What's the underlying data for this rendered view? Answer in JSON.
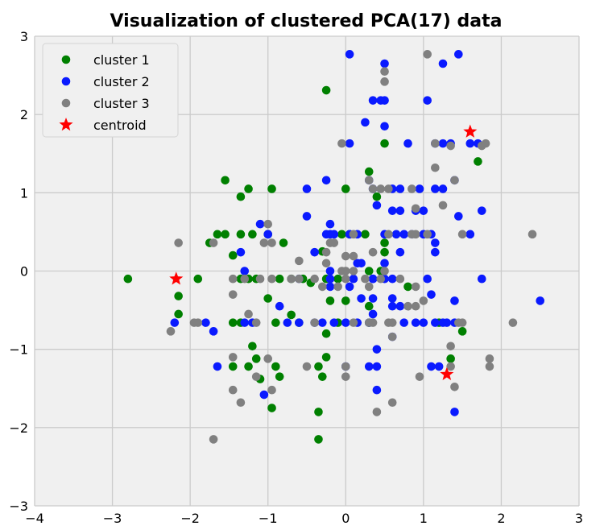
{
  "chart_data": {
    "type": "scatter",
    "title": "Visualization of clustered PCA(17) data",
    "xlabel": "",
    "ylabel": "",
    "xlim": [
      -4,
      3
    ],
    "ylim": [
      -3,
      3
    ],
    "xticks": [
      -4,
      -3,
      -2,
      -1,
      0,
      1,
      2,
      3
    ],
    "yticks": [
      -3,
      -2,
      -1,
      0,
      1,
      2,
      3
    ],
    "xtick_labels": [
      "−4",
      "−3",
      "−2",
      "−1",
      "0",
      "1",
      "2",
      "3"
    ],
    "ytick_labels": [
      "−3",
      "−2",
      "−1",
      "0",
      "1",
      "2",
      "3"
    ],
    "grid": true,
    "legend_position": "top-left",
    "background_color": "#f0f0f0",
    "grid_color": "#cbcbcb",
    "series": [
      {
        "name": "cluster 1",
        "color": "#008000",
        "marker": "circle",
        "points": [
          [
            -2.8,
            -0.1
          ],
          [
            -2.15,
            -0.32
          ],
          [
            -2.15,
            -0.55
          ],
          [
            -1.9,
            -0.1
          ],
          [
            -1.75,
            0.36
          ],
          [
            -1.65,
            0.47
          ],
          [
            -1.55,
            1.16
          ],
          [
            -1.55,
            0.47
          ],
          [
            -1.45,
            0.2
          ],
          [
            -1.35,
            0.95
          ],
          [
            -1.25,
            1.05
          ],
          [
            -1.35,
            0.47
          ],
          [
            -1.35,
            -0.1
          ],
          [
            -1.25,
            -0.1
          ],
          [
            -1.15,
            -0.1
          ],
          [
            -1.2,
            0.47
          ],
          [
            -1.0,
            0.47
          ],
          [
            -0.95,
            1.05
          ],
          [
            -0.8,
            0.36
          ],
          [
            -0.85,
            -0.1
          ],
          [
            -0.7,
            -0.1
          ],
          [
            -0.55,
            -0.1
          ],
          [
            -0.45,
            -0.15
          ],
          [
            -0.25,
            -0.1
          ],
          [
            -0.1,
            -0.1
          ],
          [
            0.0,
            1.05
          ],
          [
            -0.25,
            2.31
          ],
          [
            0.3,
            1.27
          ],
          [
            0.4,
            0.95
          ],
          [
            0.5,
            1.63
          ],
          [
            0.05,
            0.47
          ],
          [
            0.25,
            0.47
          ],
          [
            0.3,
            0.0
          ],
          [
            0.45,
            0.0
          ],
          [
            0.5,
            0.36
          ],
          [
            0.5,
            0.24
          ],
          [
            0.8,
            -0.2
          ],
          [
            1.7,
            1.4
          ],
          [
            1.35,
            -1.12
          ],
          [
            1.5,
            -0.77
          ],
          [
            -0.2,
            -0.38
          ],
          [
            -0.1,
            -0.66
          ],
          [
            0.0,
            -0.38
          ],
          [
            -0.7,
            -0.56
          ],
          [
            -1.2,
            -0.96
          ],
          [
            -1.15,
            -1.12
          ],
          [
            -1.25,
            -1.22
          ],
          [
            -1.45,
            -1.22
          ],
          [
            -1.1,
            -1.38
          ],
          [
            -0.9,
            -1.22
          ],
          [
            -0.85,
            -1.35
          ],
          [
            -0.95,
            -1.75
          ],
          [
            -0.25,
            -1.1
          ],
          [
            -0.35,
            -1.8
          ],
          [
            -0.35,
            -2.15
          ],
          [
            -0.3,
            -1.35
          ],
          [
            -0.35,
            -1.22
          ],
          [
            0.3,
            -0.45
          ],
          [
            0.3,
            -0.66
          ],
          [
            -0.6,
            -0.66
          ],
          [
            -0.9,
            -0.66
          ],
          [
            -1.35,
            -0.66
          ],
          [
            -1.45,
            -0.66
          ],
          [
            -1.0,
            -0.35
          ],
          [
            -0.3,
            0.25
          ],
          [
            -0.05,
            0.47
          ],
          [
            1.2,
            -0.66
          ],
          [
            -0.25,
            -0.8
          ]
        ]
      },
      {
        "name": "cluster 2",
        "color": "#0a1aff",
        "marker": "circle",
        "points": [
          [
            0.05,
            2.77
          ],
          [
            0.5,
            2.65
          ],
          [
            1.25,
            2.65
          ],
          [
            1.45,
            2.77
          ],
          [
            0.35,
            2.18
          ],
          [
            0.45,
            2.18
          ],
          [
            0.5,
            2.18
          ],
          [
            1.05,
            2.18
          ],
          [
            0.25,
            1.9
          ],
          [
            0.5,
            1.85
          ],
          [
            0.05,
            1.63
          ],
          [
            0.8,
            1.63
          ],
          [
            1.15,
            1.63
          ],
          [
            1.25,
            1.63
          ],
          [
            1.35,
            1.63
          ],
          [
            1.6,
            1.63
          ],
          [
            1.7,
            1.63
          ],
          [
            -0.25,
            1.16
          ],
          [
            -0.5,
            1.05
          ],
          [
            0.35,
            1.05
          ],
          [
            0.6,
            1.05
          ],
          [
            0.7,
            1.05
          ],
          [
            0.95,
            1.05
          ],
          [
            0.3,
            1.16
          ],
          [
            1.15,
            1.05
          ],
          [
            1.25,
            1.05
          ],
          [
            1.4,
            1.16
          ],
          [
            -0.5,
            0.7
          ],
          [
            0.4,
            0.84
          ],
          [
            0.6,
            0.77
          ],
          [
            0.7,
            0.77
          ],
          [
            0.9,
            0.77
          ],
          [
            1.0,
            0.77
          ],
          [
            1.45,
            0.7
          ],
          [
            1.75,
            0.77
          ],
          [
            -1.1,
            0.6
          ],
          [
            -1.0,
            0.47
          ],
          [
            -0.25,
            0.47
          ],
          [
            -0.2,
            0.47
          ],
          [
            -0.2,
            0.6
          ],
          [
            -0.4,
            0.24
          ],
          [
            -0.15,
            0.47
          ],
          [
            0.05,
            0.47
          ],
          [
            0.15,
            0.47
          ],
          [
            0.5,
            0.47
          ],
          [
            0.65,
            0.47
          ],
          [
            0.75,
            0.47
          ],
          [
            0.85,
            0.47
          ],
          [
            1.0,
            0.47
          ],
          [
            1.1,
            0.47
          ],
          [
            1.6,
            0.47
          ],
          [
            -1.35,
            0.24
          ],
          [
            -1.3,
            0.0
          ],
          [
            0.5,
            0.1
          ],
          [
            0.7,
            0.24
          ],
          [
            1.15,
            0.24
          ],
          [
            1.15,
            0.36
          ],
          [
            0.2,
            0.1
          ],
          [
            -0.85,
            -0.45
          ],
          [
            -0.75,
            -0.66
          ],
          [
            -0.6,
            -0.66
          ],
          [
            -0.4,
            -0.66
          ],
          [
            -0.3,
            -0.66
          ],
          [
            -0.15,
            -0.66
          ],
          [
            0.0,
            -0.66
          ],
          [
            0.15,
            -0.66
          ],
          [
            0.3,
            -0.66
          ],
          [
            0.35,
            -0.55
          ],
          [
            0.6,
            -0.45
          ],
          [
            0.75,
            -0.66
          ],
          [
            0.9,
            -0.66
          ],
          [
            1.0,
            -0.66
          ],
          [
            1.15,
            -0.66
          ],
          [
            1.25,
            -0.66
          ],
          [
            1.3,
            -0.66
          ],
          [
            1.4,
            -0.66
          ],
          [
            -1.8,
            -0.66
          ],
          [
            -1.7,
            -0.77
          ],
          [
            -1.65,
            -1.22
          ],
          [
            -1.3,
            -0.66
          ],
          [
            -1.2,
            -0.66
          ],
          [
            -1.05,
            -1.58
          ],
          [
            -0.2,
            -0.2
          ],
          [
            0.05,
            -0.2
          ],
          [
            0.2,
            -0.35
          ],
          [
            0.35,
            -0.35
          ],
          [
            0.6,
            -0.35
          ],
          [
            0.7,
            -0.45
          ],
          [
            -0.2,
            -0.1
          ],
          [
            0.1,
            -0.1
          ],
          [
            0.35,
            -0.1
          ],
          [
            0.6,
            -0.1
          ],
          [
            1.05,
            -0.1
          ],
          [
            1.1,
            -0.3
          ],
          [
            1.75,
            -0.1
          ],
          [
            0.0,
            -1.22
          ],
          [
            0.3,
            -1.22
          ],
          [
            0.4,
            -1.22
          ],
          [
            0.4,
            -1.52
          ],
          [
            0.4,
            -1.0
          ],
          [
            0.6,
            -0.84
          ],
          [
            1.1,
            -1.22
          ],
          [
            1.2,
            -1.22
          ],
          [
            1.4,
            -1.8
          ],
          [
            1.4,
            -0.38
          ],
          [
            2.5,
            -0.38
          ],
          [
            0.35,
            -0.1
          ],
          [
            0.15,
            0.1
          ],
          [
            0.5,
            -0.1
          ],
          [
            -0.6,
            -0.1
          ],
          [
            -0.2,
            0.0
          ],
          [
            -2.2,
            -0.66
          ]
        ]
      },
      {
        "name": "cluster 3",
        "color": "#808080",
        "marker": "circle",
        "points": [
          [
            1.05,
            2.77
          ],
          [
            0.5,
            2.42
          ],
          [
            0.5,
            2.55
          ],
          [
            1.15,
            1.63
          ],
          [
            1.35,
            1.6
          ],
          [
            1.75,
            1.6
          ],
          [
            1.8,
            1.63
          ],
          [
            -0.05,
            1.63
          ],
          [
            1.15,
            1.32
          ],
          [
            1.4,
            1.16
          ],
          [
            1.25,
            0.84
          ],
          [
            1.5,
            0.47
          ],
          [
            2.4,
            0.47
          ],
          [
            0.3,
            1.16
          ],
          [
            0.35,
            1.05
          ],
          [
            0.45,
            1.05
          ],
          [
            0.55,
            1.05
          ],
          [
            0.85,
            1.05
          ],
          [
            0.9,
            0.8
          ],
          [
            -2.15,
            0.36
          ],
          [
            -1.7,
            0.36
          ],
          [
            -1.0,
            0.6
          ],
          [
            -1.05,
            0.36
          ],
          [
            -0.95,
            0.36
          ],
          [
            -0.2,
            0.36
          ],
          [
            -0.15,
            0.36
          ],
          [
            -0.25,
            0.1
          ],
          [
            0.1,
            0.47
          ],
          [
            0.55,
            0.47
          ],
          [
            0.85,
            0.47
          ],
          [
            0.9,
            0.47
          ],
          [
            1.05,
            0.47
          ],
          [
            -0.6,
            0.13
          ],
          [
            0.0,
            0.19
          ],
          [
            0.1,
            0.19
          ],
          [
            0.35,
            0.24
          ],
          [
            0.0,
            0.0
          ],
          [
            0.1,
            0.0
          ],
          [
            -1.45,
            -0.1
          ],
          [
            -1.3,
            -0.1
          ],
          [
            -1.1,
            -0.1
          ],
          [
            -0.95,
            -0.1
          ],
          [
            -0.7,
            -0.1
          ],
          [
            -0.6,
            -0.1
          ],
          [
            -0.4,
            -0.1
          ],
          [
            -0.3,
            -0.2
          ],
          [
            -0.1,
            -0.2
          ],
          [
            0.25,
            -0.1
          ],
          [
            0.3,
            -0.2
          ],
          [
            0.45,
            -0.1
          ],
          [
            0.7,
            -0.1
          ],
          [
            0.9,
            -0.2
          ],
          [
            0.8,
            -0.45
          ],
          [
            0.9,
            -0.45
          ],
          [
            1.0,
            -0.38
          ],
          [
            -1.45,
            -0.3
          ],
          [
            -1.25,
            -0.55
          ],
          [
            -0.4,
            -0.66
          ],
          [
            0.1,
            -0.66
          ],
          [
            0.3,
            -0.66
          ],
          [
            0.35,
            -0.66
          ],
          [
            0.6,
            -0.66
          ],
          [
            -1.95,
            -0.66
          ],
          [
            -2.25,
            -0.77
          ],
          [
            -1.9,
            -0.66
          ],
          [
            -1.15,
            -0.66
          ],
          [
            1.45,
            -0.66
          ],
          [
            1.5,
            -0.66
          ],
          [
            2.15,
            -0.66
          ],
          [
            0.6,
            -0.84
          ],
          [
            1.35,
            -0.96
          ],
          [
            1.85,
            -1.12
          ],
          [
            1.85,
            -1.22
          ],
          [
            1.4,
            -1.48
          ],
          [
            1.35,
            -1.22
          ],
          [
            -1.45,
            -1.1
          ],
          [
            -1.45,
            -1.52
          ],
          [
            -1.35,
            -1.68
          ],
          [
            -1.15,
            -1.35
          ],
          [
            -1.0,
            -1.12
          ],
          [
            -0.95,
            -1.52
          ],
          [
            0.0,
            -1.22
          ],
          [
            0.0,
            -1.35
          ],
          [
            -0.5,
            -1.22
          ],
          [
            0.4,
            -1.8
          ],
          [
            0.6,
            -1.68
          ],
          [
            0.95,
            -1.35
          ],
          [
            -1.7,
            -2.15
          ],
          [
            0.55,
            -0.66
          ],
          [
            -0.25,
            0.24
          ],
          [
            -0.05,
            0.0
          ],
          [
            0.0,
            -0.1
          ],
          [
            0.5,
            0.0
          ]
        ]
      },
      {
        "name": "centroid",
        "color": "#ff0000",
        "marker": "star",
        "points": [
          [
            -2.18,
            -0.1
          ],
          [
            1.6,
            1.78
          ],
          [
            1.3,
            -1.32
          ]
        ]
      }
    ]
  }
}
